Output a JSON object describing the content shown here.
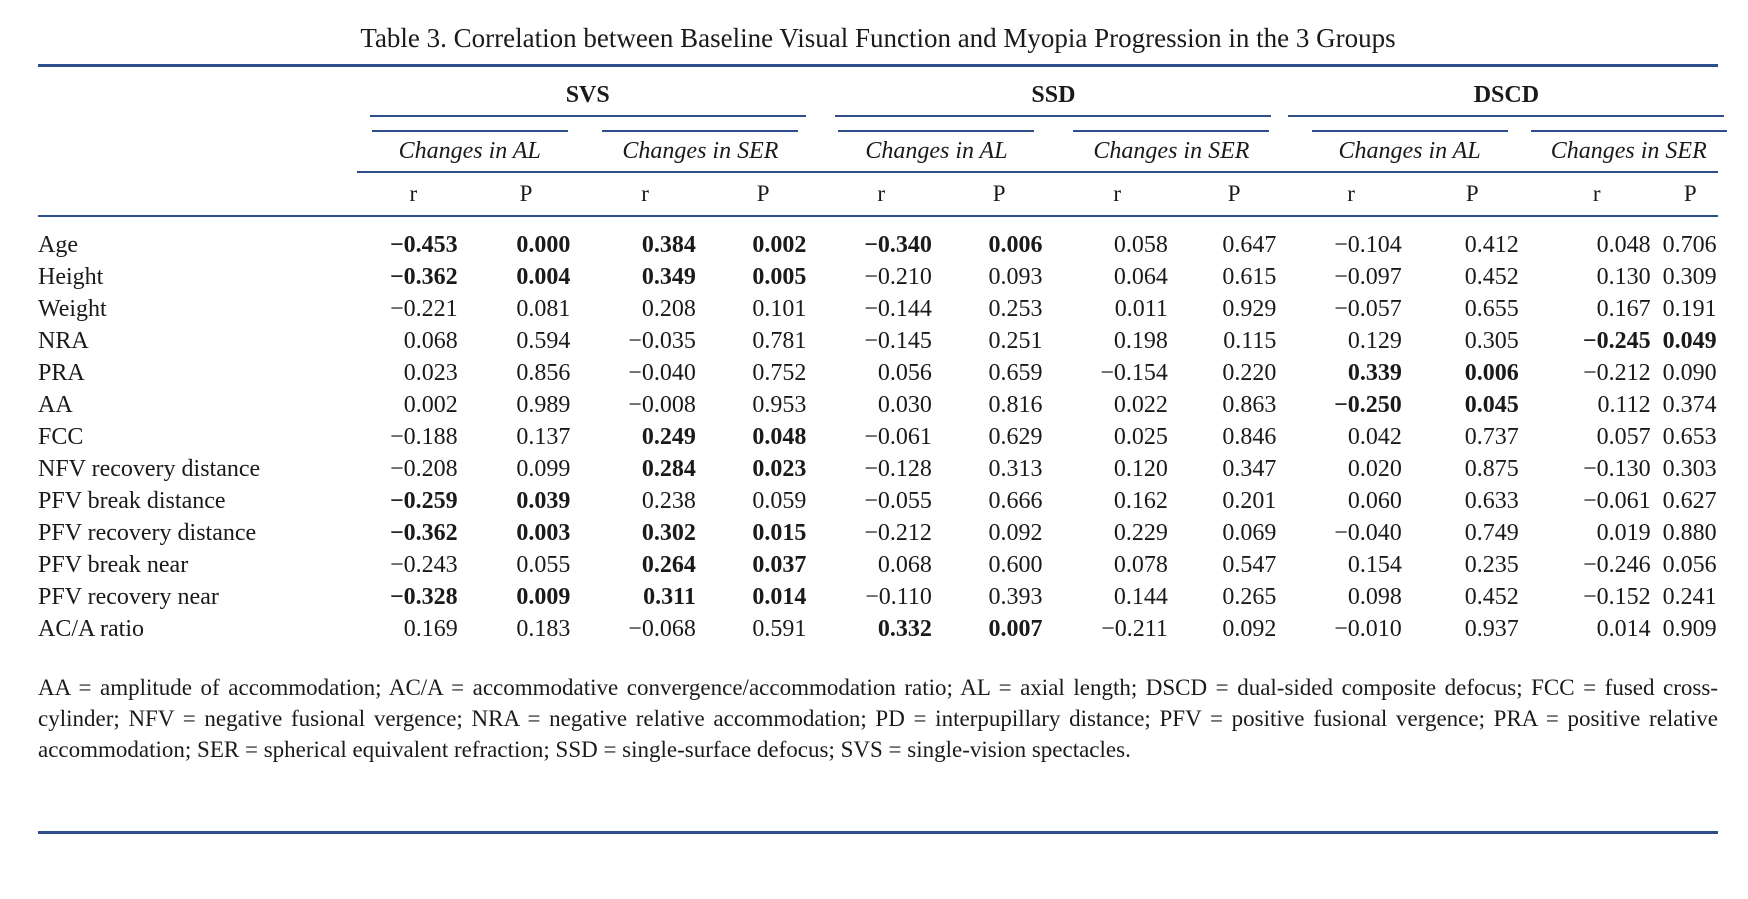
{
  "title": "Table 3.  Correlation between Baseline Visual Function and Myopia Progression in the 3 Groups",
  "groups": [
    "SVS",
    "SSD",
    "DSCD"
  ],
  "subheaders": [
    "Changes in AL",
    "Changes in SER",
    "Changes in AL",
    "Changes in SER",
    "Changes in AL",
    "Changes in SER"
  ],
  "rp": [
    "r",
    "P"
  ],
  "rows": [
    {
      "label": "Age",
      "cells": [
        [
          "−0.453",
          true
        ],
        [
          "0.000",
          true
        ],
        [
          "0.384",
          true
        ],
        [
          "0.002",
          true
        ],
        [
          "−0.340",
          true
        ],
        [
          "0.006",
          true
        ],
        [
          "0.058",
          false
        ],
        [
          "0.647",
          false
        ],
        [
          "−0.104",
          false
        ],
        [
          "0.412",
          false
        ],
        [
          "0.048",
          false
        ],
        [
          "0.706",
          false
        ]
      ]
    },
    {
      "label": "Height",
      "cells": [
        [
          "−0.362",
          true
        ],
        [
          "0.004",
          true
        ],
        [
          "0.349",
          true
        ],
        [
          "0.005",
          true
        ],
        [
          "−0.210",
          false
        ],
        [
          "0.093",
          false
        ],
        [
          "0.064",
          false
        ],
        [
          "0.615",
          false
        ],
        [
          "−0.097",
          false
        ],
        [
          "0.452",
          false
        ],
        [
          "0.130",
          false
        ],
        [
          "0.309",
          false
        ]
      ]
    },
    {
      "label": "Weight",
      "cells": [
        [
          "−0.221",
          false
        ],
        [
          "0.081",
          false
        ],
        [
          "0.208",
          false
        ],
        [
          "0.101",
          false
        ],
        [
          "−0.144",
          false
        ],
        [
          "0.253",
          false
        ],
        [
          "0.011",
          false
        ],
        [
          "0.929",
          false
        ],
        [
          "−0.057",
          false
        ],
        [
          "0.655",
          false
        ],
        [
          "0.167",
          false
        ],
        [
          "0.191",
          false
        ]
      ]
    },
    {
      "label": "NRA",
      "cells": [
        [
          "0.068",
          false
        ],
        [
          "0.594",
          false
        ],
        [
          "−0.035",
          false
        ],
        [
          "0.781",
          false
        ],
        [
          "−0.145",
          false
        ],
        [
          "0.251",
          false
        ],
        [
          "0.198",
          false
        ],
        [
          "0.115",
          false
        ],
        [
          "0.129",
          false
        ],
        [
          "0.305",
          false
        ],
        [
          "−0.245",
          true
        ],
        [
          "0.049",
          true
        ]
      ]
    },
    {
      "label": "PRA",
      "cells": [
        [
          "0.023",
          false
        ],
        [
          "0.856",
          false
        ],
        [
          "−0.040",
          false
        ],
        [
          "0.752",
          false
        ],
        [
          "0.056",
          false
        ],
        [
          "0.659",
          false
        ],
        [
          "−0.154",
          false
        ],
        [
          "0.220",
          false
        ],
        [
          "0.339",
          true
        ],
        [
          "0.006",
          true
        ],
        [
          "−0.212",
          false
        ],
        [
          "0.090",
          false
        ]
      ]
    },
    {
      "label": "AA",
      "cells": [
        [
          "0.002",
          false
        ],
        [
          "0.989",
          false
        ],
        [
          "−0.008",
          false
        ],
        [
          "0.953",
          false
        ],
        [
          "0.030",
          false
        ],
        [
          "0.816",
          false
        ],
        [
          "0.022",
          false
        ],
        [
          "0.863",
          false
        ],
        [
          "−0.250",
          true
        ],
        [
          "0.045",
          true
        ],
        [
          "0.112",
          false
        ],
        [
          "0.374",
          false
        ]
      ]
    },
    {
      "label": "FCC",
      "cells": [
        [
          "−0.188",
          false
        ],
        [
          "0.137",
          false
        ],
        [
          "0.249",
          true
        ],
        [
          "0.048",
          true
        ],
        [
          "−0.061",
          false
        ],
        [
          "0.629",
          false
        ],
        [
          "0.025",
          false
        ],
        [
          "0.846",
          false
        ],
        [
          "0.042",
          false
        ],
        [
          "0.737",
          false
        ],
        [
          "0.057",
          false
        ],
        [
          "0.653",
          false
        ]
      ]
    },
    {
      "label": "NFV recovery distance",
      "cells": [
        [
          "−0.208",
          false
        ],
        [
          "0.099",
          false
        ],
        [
          "0.284",
          true
        ],
        [
          "0.023",
          true
        ],
        [
          "−0.128",
          false
        ],
        [
          "0.313",
          false
        ],
        [
          "0.120",
          false
        ],
        [
          "0.347",
          false
        ],
        [
          "0.020",
          false
        ],
        [
          "0.875",
          false
        ],
        [
          "−0.130",
          false
        ],
        [
          "0.303",
          false
        ]
      ]
    },
    {
      "label": "PFV break distance",
      "cells": [
        [
          "−0.259",
          true
        ],
        [
          "0.039",
          true
        ],
        [
          "0.238",
          false
        ],
        [
          "0.059",
          false
        ],
        [
          "−0.055",
          false
        ],
        [
          "0.666",
          false
        ],
        [
          "0.162",
          false
        ],
        [
          "0.201",
          false
        ],
        [
          "0.060",
          false
        ],
        [
          "0.633",
          false
        ],
        [
          "−0.061",
          false
        ],
        [
          "0.627",
          false
        ]
      ]
    },
    {
      "label": "PFV recovery distance",
      "cells": [
        [
          "−0.362",
          true
        ],
        [
          "0.003",
          true
        ],
        [
          "0.302",
          true
        ],
        [
          "0.015",
          true
        ],
        [
          "−0.212",
          false
        ],
        [
          "0.092",
          false
        ],
        [
          "0.229",
          false
        ],
        [
          "0.069",
          false
        ],
        [
          "−0.040",
          false
        ],
        [
          "0.749",
          false
        ],
        [
          "0.019",
          false
        ],
        [
          "0.880",
          false
        ]
      ]
    },
    {
      "label": "PFV break near",
      "cells": [
        [
          "−0.243",
          false
        ],
        [
          "0.055",
          false
        ],
        [
          "0.264",
          true
        ],
        [
          "0.037",
          true
        ],
        [
          "0.068",
          false
        ],
        [
          "0.600",
          false
        ],
        [
          "0.078",
          false
        ],
        [
          "0.547",
          false
        ],
        [
          "0.154",
          false
        ],
        [
          "0.235",
          false
        ],
        [
          "−0.246",
          false
        ],
        [
          "0.056",
          false
        ]
      ]
    },
    {
      "label": "PFV recovery near",
      "cells": [
        [
          "−0.328",
          true
        ],
        [
          "0.009",
          true
        ],
        [
          "0.311",
          true
        ],
        [
          "0.014",
          true
        ],
        [
          "−0.110",
          false
        ],
        [
          "0.393",
          false
        ],
        [
          "0.144",
          false
        ],
        [
          "0.265",
          false
        ],
        [
          "0.098",
          false
        ],
        [
          "0.452",
          false
        ],
        [
          "−0.152",
          false
        ],
        [
          "0.241",
          false
        ]
      ]
    },
    {
      "label": "AC/A ratio",
      "cells": [
        [
          "0.169",
          false
        ],
        [
          "0.183",
          false
        ],
        [
          "−0.068",
          false
        ],
        [
          "0.591",
          false
        ],
        [
          "0.332",
          true
        ],
        [
          "0.007",
          true
        ],
        [
          "−0.211",
          false
        ],
        [
          "0.092",
          false
        ],
        [
          "−0.010",
          false
        ],
        [
          "0.937",
          false
        ],
        [
          "0.014",
          false
        ],
        [
          "0.909",
          false
        ]
      ]
    }
  ],
  "footnote": "AA = amplitude of accommodation; AC/A = accommodative convergence/accommodation ratio; AL = axial length; DSCD = dual-sided composite defocus; FCC = fused cross-cylinder; NFV = negative fusional vergence; NRA = negative relative accommodation; PD = interpupillary distance; PFV = positive fusional vergence; PRA = positive relative accommodation; SER = spherical equivalent refraction; SSD = single-surface defocus; SVS = single-vision spectacles."
}
